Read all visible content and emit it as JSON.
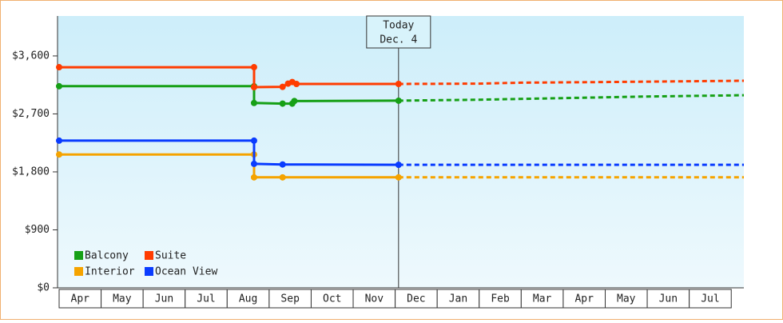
{
  "chart_data": {
    "type": "line",
    "categories": [
      "Apr",
      "May",
      "Jun",
      "Jul",
      "Aug",
      "Sep",
      "Oct",
      "Nov",
      "Dec",
      "Jan",
      "Feb",
      "Mar",
      "Apr",
      "May",
      "Jun",
      "Jul"
    ],
    "xlim": [
      0,
      16.3
    ],
    "ylim": [
      0,
      4220
    ],
    "yticks": [
      {
        "value": 0,
        "label": "$0"
      },
      {
        "value": 900,
        "label": "$900"
      },
      {
        "value": 1800,
        "label": "$1,800"
      },
      {
        "value": 2700,
        "label": "$2,700"
      },
      {
        "value": 3600,
        "label": "$3,600"
      }
    ],
    "annotation": {
      "lines": [
        "Today",
        "Dec. 4"
      ],
      "x": 8.08
    },
    "series": [
      {
        "name": "Balcony",
        "color": "#16a016",
        "x": [
          0,
          4.64,
          4.64,
          5.32,
          5.55,
          5.6,
          8.08
        ],
        "values": [
          3130,
          3130,
          2870,
          2860,
          2860,
          2900,
          2905
        ],
        "forecast_x": [
          8.08,
          10,
          12,
          14,
          16.3
        ],
        "forecast_values": [
          2905,
          2920,
          2945,
          2970,
          2990
        ]
      },
      {
        "name": "Suite",
        "color": "#ff3c00",
        "x": [
          0,
          4.64,
          4.64,
          5.32,
          5.45,
          5.55,
          5.65,
          8.08
        ],
        "values": [
          3425,
          3425,
          3115,
          3120,
          3170,
          3195,
          3165,
          3165
        ],
        "forecast_x": [
          8.08,
          10,
          11,
          13,
          16.3
        ],
        "forecast_values": [
          3165,
          3170,
          3185,
          3195,
          3215
        ]
      },
      {
        "name": "Interior",
        "color": "#f5a300",
        "x": [
          0,
          4.64,
          4.64,
          5.32,
          8.08
        ],
        "values": [
          2070,
          2070,
          1715,
          1715,
          1715
        ],
        "forecast_x": [
          8.08,
          16.3
        ],
        "forecast_values": [
          1715,
          1715
        ]
      },
      {
        "name": "Ocean View",
        "color": "#0a3cff",
        "x": [
          0,
          4.64,
          4.64,
          5.32,
          8.08
        ],
        "values": [
          2285,
          2285,
          1925,
          1915,
          1910
        ],
        "forecast_x": [
          8.08,
          16.3
        ],
        "forecast_values": [
          1910,
          1910
        ]
      }
    ]
  }
}
